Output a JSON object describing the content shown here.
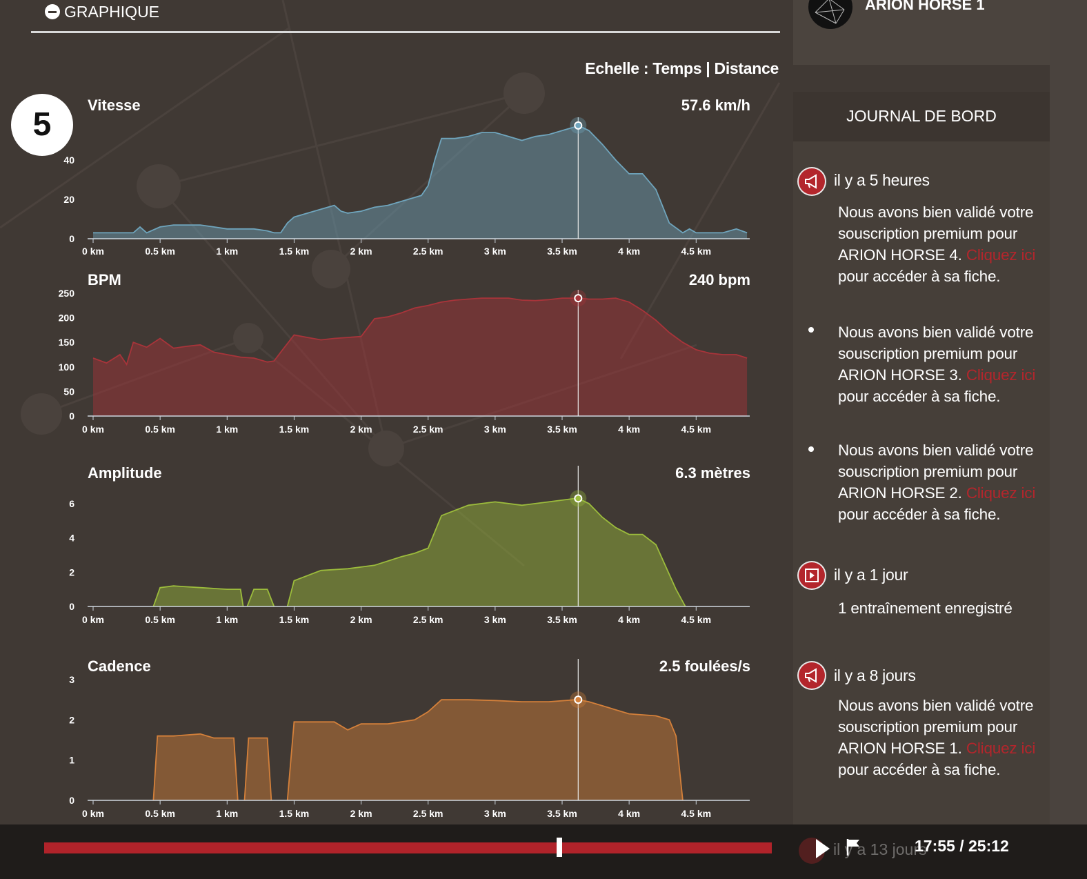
{
  "graph_panel": {
    "header_title": "GRAPHIQUE",
    "scale_label": "Echelle : Temps | Distance",
    "step_badge": "5"
  },
  "colors": {
    "vitesse": "#6fa5bd",
    "bpm": "#a8343a",
    "amplitude": "#9cbc3c",
    "cadence": "#d4803a",
    "progress": "#b0232a",
    "journal_icon": "#b3262c"
  },
  "chart_data": [
    {
      "type": "area",
      "title": "Vitesse",
      "current_value": "57.6 km/h",
      "xlabel": "",
      "ylabel": "",
      "x_ticks": [
        "0 km",
        "0.5 km",
        "1 km",
        "1.5 km",
        "2 km",
        "2.5 km",
        "3 km",
        "3.5 km",
        "4 km",
        "4.5 km"
      ],
      "y_ticks": [
        "0",
        "20",
        "40"
      ],
      "xlim": [
        0,
        4.9
      ],
      "ylim": [
        0,
        60
      ],
      "cursor_x": 3.62,
      "x": [
        0,
        0.3,
        0.35,
        0.4,
        0.5,
        0.6,
        0.8,
        0.9,
        1.0,
        1.1,
        1.2,
        1.3,
        1.35,
        1.4,
        1.45,
        1.5,
        1.6,
        1.7,
        1.8,
        1.85,
        1.9,
        2.0,
        2.1,
        2.2,
        2.3,
        2.4,
        2.45,
        2.5,
        2.55,
        2.6,
        2.7,
        2.8,
        2.9,
        3.0,
        3.1,
        3.2,
        3.3,
        3.4,
        3.5,
        3.6,
        3.62,
        3.7,
        3.8,
        3.9,
        4.0,
        4.1,
        4.2,
        4.3,
        4.4,
        4.45,
        4.5,
        4.6,
        4.7,
        4.8,
        4.88
      ],
      "values": [
        3,
        3,
        6,
        3,
        6,
        7,
        7,
        6,
        5,
        5,
        5,
        4,
        3,
        3,
        8,
        11,
        13,
        15,
        17,
        14,
        13,
        14,
        16,
        17,
        19,
        21,
        22,
        27,
        40,
        51,
        51,
        52,
        54,
        54,
        52,
        50,
        52,
        53,
        55,
        57,
        57.6,
        55,
        48,
        40,
        33,
        33,
        25,
        8,
        3,
        5,
        3,
        3,
        3,
        5,
        3
      ]
    },
    {
      "type": "area",
      "title": "BPM",
      "current_value": "240 bpm",
      "xlabel": "",
      "ylabel": "",
      "x_ticks": [
        "0 km",
        "0.5 km",
        "1 km",
        "1.5 km",
        "2 km",
        "2.5 km",
        "3 km",
        "3.5 km",
        "4 km",
        "4.5 km"
      ],
      "y_ticks": [
        "0",
        "50",
        "100",
        "150",
        "200",
        "250"
      ],
      "xlim": [
        0,
        4.9
      ],
      "ylim": [
        0,
        250
      ],
      "cursor_x": 3.62,
      "x": [
        0,
        0.1,
        0.2,
        0.25,
        0.3,
        0.4,
        0.5,
        0.6,
        0.7,
        0.8,
        0.9,
        1.0,
        1.1,
        1.2,
        1.3,
        1.35,
        1.4,
        1.5,
        1.6,
        1.7,
        1.8,
        1.9,
        2.0,
        2.1,
        2.2,
        2.3,
        2.4,
        2.5,
        2.6,
        2.7,
        2.8,
        2.9,
        3.0,
        3.1,
        3.2,
        3.3,
        3.4,
        3.5,
        3.6,
        3.62,
        3.7,
        3.8,
        3.9,
        4.0,
        4.1,
        4.2,
        4.3,
        4.4,
        4.5,
        4.6,
        4.7,
        4.8,
        4.88
      ],
      "values": [
        118,
        108,
        125,
        105,
        150,
        140,
        158,
        138,
        142,
        145,
        130,
        125,
        120,
        118,
        110,
        112,
        130,
        165,
        160,
        155,
        158,
        160,
        162,
        198,
        202,
        210,
        220,
        225,
        232,
        236,
        238,
        240,
        240,
        240,
        236,
        235,
        237,
        240,
        240,
        240,
        238,
        238,
        240,
        232,
        215,
        195,
        170,
        150,
        135,
        128,
        125,
        125,
        118
      ]
    },
    {
      "type": "area",
      "title": "Amplitude",
      "current_value": "6.3 mètres",
      "xlabel": "",
      "ylabel": "",
      "x_ticks": [
        "0 km",
        "0.5 km",
        "1 km",
        "1.5 km",
        "2 km",
        "2.5 km",
        "3 km",
        "3.5 km",
        "4 km",
        "4.5 km"
      ],
      "y_ticks": [
        "0",
        "2",
        "4",
        "6"
      ],
      "xlim": [
        0,
        4.9
      ],
      "ylim": [
        0,
        7
      ],
      "cursor_x": 3.62,
      "segments": [
        {
          "x": [
            0.45,
            0.5,
            0.6,
            0.8,
            1.0,
            1.1,
            1.12
          ],
          "values": [
            0,
            1.1,
            1.2,
            1.1,
            1.0,
            1.0,
            0
          ]
        },
        {
          "x": [
            1.15,
            1.2,
            1.3,
            1.35
          ],
          "values": [
            0,
            1.0,
            1.0,
            0
          ]
        },
        {
          "x": [
            1.45,
            1.5,
            1.7,
            1.9,
            2.1,
            2.3,
            2.4,
            2.5,
            2.6,
            2.8,
            3.0,
            3.2,
            3.4,
            3.6,
            3.62,
            3.7,
            3.8,
            3.9,
            4.0,
            4.1,
            4.2,
            4.35,
            4.42
          ],
          "values": [
            0,
            1.5,
            2.1,
            2.2,
            2.4,
            2.9,
            3.1,
            3.4,
            5.3,
            5.9,
            6.1,
            5.9,
            6.1,
            6.3,
            6.3,
            6.0,
            5.2,
            4.6,
            4.2,
            4.2,
            3.6,
            1.0,
            0
          ]
        }
      ]
    },
    {
      "type": "area",
      "title": "Cadence",
      "current_value": "2.5 foulées/s",
      "xlabel": "",
      "ylabel": "",
      "x_ticks": [
        "0 km",
        "0.5 km",
        "1 km",
        "1.5 km",
        "2 km",
        "2.5 km",
        "3 km",
        "3.5 km",
        "4 km",
        "4.5 km"
      ],
      "y_ticks": [
        "0",
        "1",
        "2",
        "3"
      ],
      "xlim": [
        0,
        4.9
      ],
      "ylim": [
        0,
        3
      ],
      "cursor_x": 3.62,
      "segments": [
        {
          "x": [
            0.45,
            0.48,
            0.6,
            0.8,
            0.9,
            1.0,
            1.05,
            1.08
          ],
          "values": [
            0,
            1.6,
            1.6,
            1.65,
            1.55,
            1.55,
            1.55,
            0
          ]
        },
        {
          "x": [
            1.13,
            1.16,
            1.3,
            1.33
          ],
          "values": [
            0,
            1.55,
            1.55,
            0
          ]
        },
        {
          "x": [
            1.45,
            1.5,
            1.7,
            1.8,
            1.9,
            2.0,
            2.2,
            2.4,
            2.5,
            2.6,
            2.8,
            3.0,
            3.2,
            3.4,
            3.6,
            3.62,
            3.7,
            3.8,
            4.0,
            4.2,
            4.3,
            4.35,
            4.4
          ],
          "values": [
            0,
            1.95,
            1.95,
            1.95,
            1.75,
            1.9,
            1.9,
            2.0,
            2.2,
            2.5,
            2.5,
            2.48,
            2.45,
            2.45,
            2.5,
            2.5,
            2.45,
            2.35,
            2.15,
            2.1,
            2.0,
            1.6,
            0
          ]
        }
      ]
    }
  ],
  "horse_card": {
    "name": "ARION HORSE 1",
    "avatar_icon": "network-icon"
  },
  "journal": {
    "title": "JOURNAL DE BORD",
    "entries": [
      {
        "icon": "megaphone-icon",
        "time": "il y a 5 heures",
        "items": [
          {
            "text_before": "Nous avons bien validé votre souscription premium pour ARION HORSE 4.",
            "link": "Cliquez ici",
            "text_after": "pour accéder à sa fiche."
          },
          {
            "text_before": "Nous avons bien validé votre souscription premium pour ARION HORSE 3.",
            "link": "Cliquez ici",
            "text_after": "pour accéder à sa fiche."
          },
          {
            "text_before": "Nous avons bien validé votre souscription premium pour ARION HORSE 2.",
            "link": "Cliquez ici",
            "text_after": "pour accéder à sa fiche."
          }
        ]
      },
      {
        "icon": "video-icon",
        "time": "il y a 1 jour",
        "items": [
          {
            "text": "1 entraînement enregistré"
          }
        ]
      },
      {
        "icon": "megaphone-icon",
        "time": "il y a 8 jours",
        "items": [
          {
            "text_before": "Nous avons bien validé votre souscription premium pour ARION HORSE 1.",
            "link": "Cliquez ici",
            "text_after": "pour accéder à sa fiche."
          }
        ]
      },
      {
        "icon": "video-icon",
        "time": "il y a 13 jours"
      }
    ]
  },
  "player": {
    "progress": 0.708,
    "time": "17:55 / 25:12",
    "play_icon": "play-icon",
    "flag_icon": "flag-icon"
  }
}
